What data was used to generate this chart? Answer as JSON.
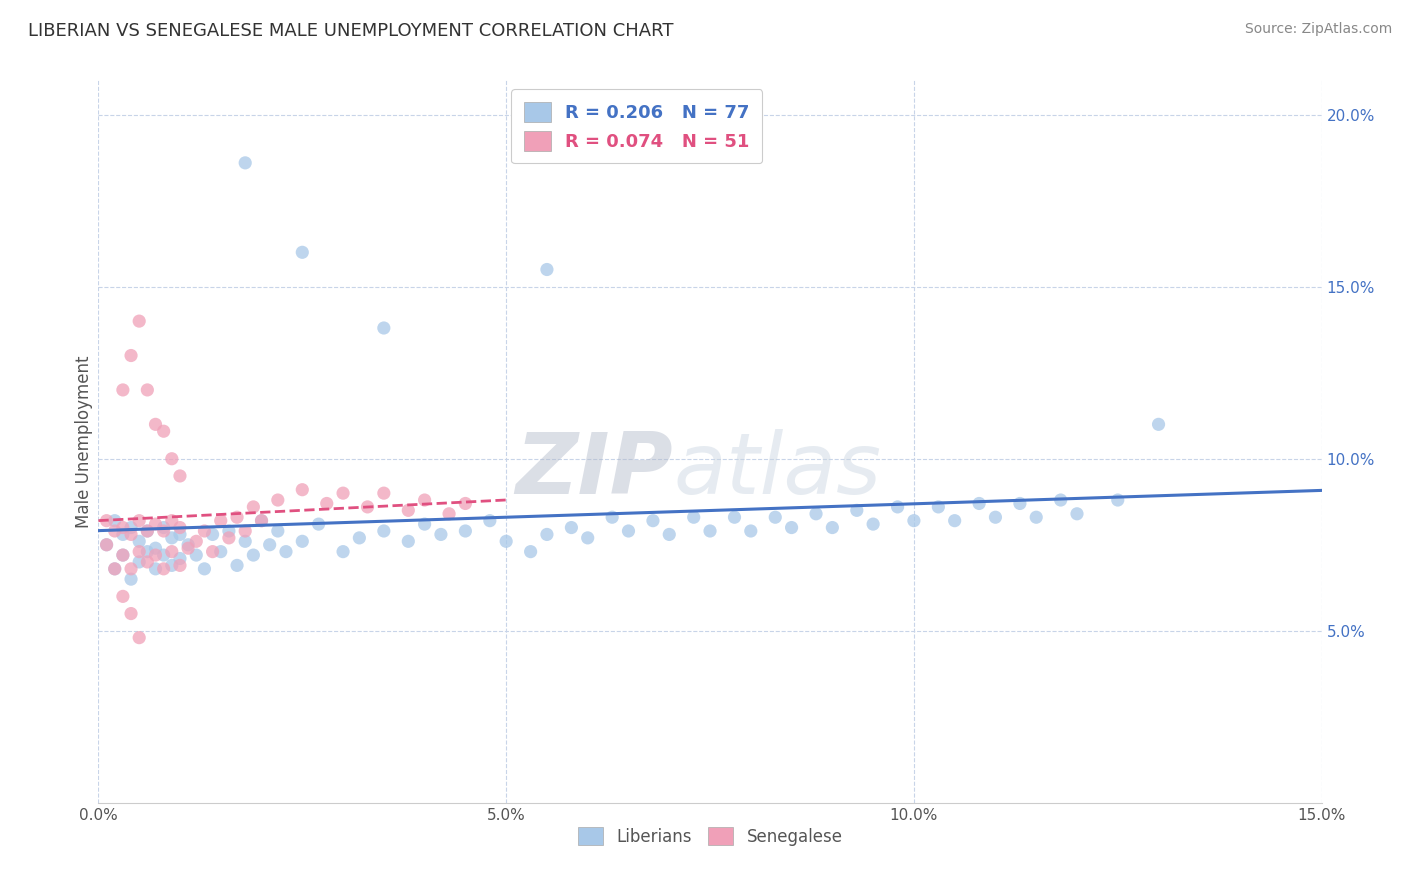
{
  "title": "LIBERIAN VS SENEGALESE MALE UNEMPLOYMENT CORRELATION CHART",
  "source_text": "Source: ZipAtlas.com",
  "ylabel": "Male Unemployment",
  "xlim": [
    0.0,
    0.15
  ],
  "ylim": [
    0.0,
    0.21
  ],
  "x_ticks": [
    0.0,
    0.05,
    0.1,
    0.15
  ],
  "x_tick_labels": [
    "0.0%",
    "5.0%",
    "10.0%",
    "15.0%"
  ],
  "y_ticks": [
    0.05,
    0.1,
    0.15,
    0.2
  ],
  "y_tick_labels": [
    "5.0%",
    "10.0%",
    "15.0%",
    "20.0%"
  ],
  "liberian_color": "#a8c8e8",
  "senegalese_color": "#f0a0b8",
  "liberian_line_color": "#4472c4",
  "senegalese_line_color": "#e05080",
  "R_liberian": 0.206,
  "N_liberian": 77,
  "R_senegalese": 0.074,
  "N_senegalese": 51,
  "watermark_zip": "ZIP",
  "watermark_atlas": "atlas",
  "background_color": "#ffffff",
  "grid_color": "#c8d4e8",
  "liberian_x": [
    0.001,
    0.002,
    0.002,
    0.003,
    0.003,
    0.004,
    0.004,
    0.005,
    0.005,
    0.006,
    0.006,
    0.007,
    0.007,
    0.008,
    0.008,
    0.009,
    0.009,
    0.01,
    0.01,
    0.011,
    0.012,
    0.013,
    0.014,
    0.015,
    0.016,
    0.017,
    0.018,
    0.019,
    0.02,
    0.021,
    0.022,
    0.023,
    0.025,
    0.027,
    0.03,
    0.032,
    0.035,
    0.038,
    0.04,
    0.042,
    0.045,
    0.048,
    0.05,
    0.053,
    0.055,
    0.058,
    0.06,
    0.063,
    0.065,
    0.068,
    0.07,
    0.073,
    0.075,
    0.078,
    0.08,
    0.083,
    0.085,
    0.088,
    0.09,
    0.093,
    0.095,
    0.098,
    0.1,
    0.103,
    0.105,
    0.108,
    0.11,
    0.113,
    0.115,
    0.118,
    0.12,
    0.125,
    0.13,
    0.018,
    0.025,
    0.035,
    0.055
  ],
  "liberian_y": [
    0.075,
    0.068,
    0.082,
    0.072,
    0.078,
    0.065,
    0.08,
    0.07,
    0.076,
    0.073,
    0.079,
    0.068,
    0.074,
    0.072,
    0.08,
    0.069,
    0.077,
    0.071,
    0.078,
    0.075,
    0.072,
    0.068,
    0.078,
    0.073,
    0.079,
    0.069,
    0.076,
    0.072,
    0.082,
    0.075,
    0.079,
    0.073,
    0.076,
    0.081,
    0.073,
    0.077,
    0.079,
    0.076,
    0.081,
    0.078,
    0.079,
    0.082,
    0.076,
    0.073,
    0.078,
    0.08,
    0.077,
    0.083,
    0.079,
    0.082,
    0.078,
    0.083,
    0.079,
    0.083,
    0.079,
    0.083,
    0.08,
    0.084,
    0.08,
    0.085,
    0.081,
    0.086,
    0.082,
    0.086,
    0.082,
    0.087,
    0.083,
    0.087,
    0.083,
    0.088,
    0.084,
    0.088,
    0.11,
    0.186,
    0.16,
    0.138,
    0.155
  ],
  "senegalese_x": [
    0.001,
    0.001,
    0.002,
    0.002,
    0.003,
    0.003,
    0.004,
    0.004,
    0.005,
    0.005,
    0.006,
    0.006,
    0.007,
    0.007,
    0.008,
    0.008,
    0.009,
    0.009,
    0.01,
    0.01,
    0.011,
    0.012,
    0.013,
    0.014,
    0.015,
    0.016,
    0.017,
    0.018,
    0.019,
    0.02,
    0.022,
    0.025,
    0.028,
    0.03,
    0.033,
    0.035,
    0.038,
    0.04,
    0.043,
    0.045,
    0.003,
    0.004,
    0.005,
    0.006,
    0.007,
    0.008,
    0.009,
    0.01,
    0.003,
    0.004,
    0.005
  ],
  "senegalese_y": [
    0.075,
    0.082,
    0.068,
    0.079,
    0.072,
    0.08,
    0.068,
    0.078,
    0.073,
    0.082,
    0.07,
    0.079,
    0.072,
    0.081,
    0.068,
    0.079,
    0.073,
    0.082,
    0.069,
    0.08,
    0.074,
    0.076,
    0.079,
    0.073,
    0.082,
    0.077,
    0.083,
    0.079,
    0.086,
    0.082,
    0.088,
    0.091,
    0.087,
    0.09,
    0.086,
    0.09,
    0.085,
    0.088,
    0.084,
    0.087,
    0.12,
    0.13,
    0.14,
    0.12,
    0.11,
    0.108,
    0.1,
    0.095,
    0.06,
    0.055,
    0.048
  ]
}
